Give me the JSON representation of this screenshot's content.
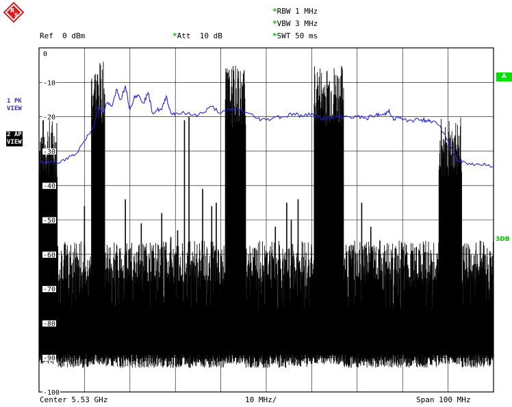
{
  "header": {
    "ref": "Ref  0 dBm",
    "att": "Att  10 dB",
    "rbw": "RBW 1 MHz",
    "vbw": "VBW 3 MHz",
    "swt": "SWT 50 ms"
  },
  "left_panel": {
    "trace1_line1": "1 PK",
    "trace1_line2": "VIEW",
    "trace2_line1": "2 AP",
    "trace2_line2": "VIEW"
  },
  "right_panel": {
    "tag_a": "A",
    "tag_3db": "3DB"
  },
  "footer": {
    "center": "Center 5.53 GHz",
    "div": "10 MHz/",
    "span": "Span 100 MHz"
  },
  "colors": {
    "trace1": "#2020e0",
    "trace2": "#000000",
    "accent": "#00d000",
    "logo": "#d02020"
  },
  "chart_data": {
    "type": "line",
    "xlabel": "",
    "ylabel": "",
    "x_center_ghz": 5.53,
    "x_span_mhz": 100,
    "x_range_mhz": [
      -50,
      50
    ],
    "y_range_dbm": [
      -100,
      0
    ],
    "y_tick_labels": [
      "0",
      "-10",
      "-20",
      "-30",
      "-40",
      "-50",
      "-60",
      "-70",
      "-80",
      "-90",
      "-100"
    ],
    "grid": true,
    "series": [
      {
        "name": "1 PK VIEW",
        "x": [
          -50,
          -48,
          -46,
          -44,
          -42,
          -40,
          -38,
          -37,
          -36,
          -35,
          -34,
          -33,
          -32,
          -31,
          -30,
          -29,
          -28,
          -27,
          -26,
          -25,
          -24,
          -23,
          -22,
          -21,
          -20,
          -18,
          -16,
          -14,
          -12,
          -10,
          -8,
          -6,
          -4,
          -2,
          0,
          2,
          4,
          6,
          8,
          10,
          12,
          14,
          16,
          18,
          20,
          22,
          24,
          25,
          26,
          27,
          28,
          29,
          30,
          32,
          34,
          35,
          36,
          38,
          40,
          42,
          44,
          46,
          48,
          50
        ],
        "y": [
          -33.5,
          -33,
          -33.5,
          -32,
          -31,
          -27,
          -23,
          -17,
          -19,
          -16,
          -17,
          -12,
          -15,
          -11,
          -18,
          -14,
          -14,
          -16,
          -13,
          -19,
          -18,
          -18,
          -14,
          -19,
          -19,
          -19,
          -19.5,
          -19,
          -17,
          -19,
          -18,
          -18,
          -19,
          -20.5,
          -21,
          -20,
          -20,
          -19,
          -20,
          -19,
          -20.5,
          -20.5,
          -20,
          -20,
          -20,
          -20.5,
          -19.5,
          -19.5,
          -19.5,
          -18,
          -21,
          -20,
          -21,
          -21,
          -21,
          -21,
          -21,
          -22.5,
          -27,
          -33,
          -33.5,
          -34,
          -33.5,
          -34.5
        ]
      },
      {
        "name": "2 AP VIEW",
        "noise_floor_dbm": -90,
        "bands": [
          {
            "x": [
              -50,
              -46
            ],
            "top": -38
          },
          {
            "x": [
              -38.5,
              -35.5
            ],
            "top": -22
          },
          {
            "x": [
              -9,
              -4.5
            ],
            "top": -23
          },
          {
            "x": [
              10.5,
              17
            ],
            "top": -23
          },
          {
            "x": [
              38,
              43
            ],
            "top": -38
          }
        ],
        "spurs": [
          {
            "x": -40,
            "top": -46
          },
          {
            "x": -31,
            "top": -44
          },
          {
            "x": -27.5,
            "top": -51
          },
          {
            "x": -23,
            "top": -48
          },
          {
            "x": -21,
            "top": -55
          },
          {
            "x": -19.5,
            "top": -53
          },
          {
            "x": -18,
            "top": -21
          },
          {
            "x": -17,
            "top": -20
          },
          {
            "x": -14,
            "top": -41
          },
          {
            "x": -12,
            "top": -46
          },
          {
            "x": -11,
            "top": -45
          },
          {
            "x": 2,
            "top": -52
          },
          {
            "x": 4.5,
            "top": -45
          },
          {
            "x": 5.5,
            "top": -50
          },
          {
            "x": 7,
            "top": -44
          },
          {
            "x": 21,
            "top": -45
          },
          {
            "x": 23,
            "top": -52
          },
          {
            "x": 25,
            "top": -56
          },
          {
            "x": 33,
            "top": -58
          }
        ]
      }
    ]
  }
}
